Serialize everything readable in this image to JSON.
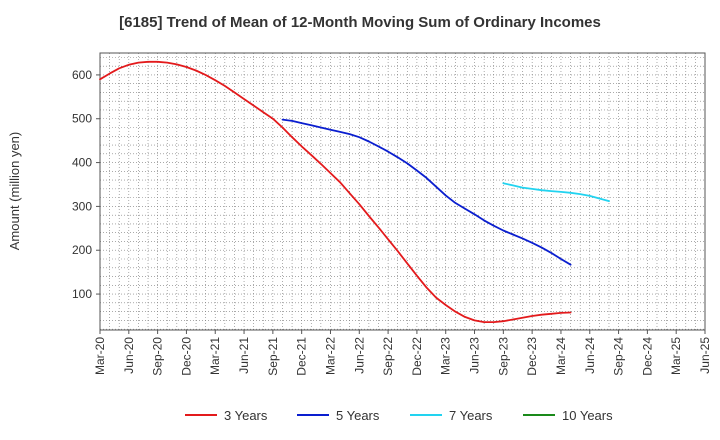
{
  "chart_data": {
    "type": "line",
    "title": "[6185]  Trend of Mean of 12-Month Moving Sum of Ordinary Incomes",
    "xlabel": "",
    "ylabel": "Amount (million yen)",
    "ylim": [
      18,
      650
    ],
    "y_ticks": [
      100,
      200,
      300,
      400,
      500,
      600
    ],
    "grid": true,
    "legend_position": "bottom",
    "x_tick_labels": [
      "Mar-20",
      "Jun-20",
      "Sep-20",
      "Dec-20",
      "Mar-21",
      "Jun-21",
      "Sep-21",
      "Dec-21",
      "Mar-22",
      "Jun-22",
      "Sep-22",
      "Dec-22",
      "Mar-23",
      "Jun-23",
      "Sep-23",
      "Dec-23",
      "Mar-24",
      "Jun-24",
      "Sep-24",
      "Dec-24",
      "Mar-25",
      "Jun-25"
    ],
    "series": [
      {
        "name": "3 Years",
        "color": "#e31a1c",
        "start_index": 0,
        "values": [
          590,
          603,
          615,
          623,
          628,
          630,
          630,
          628,
          624,
          618,
          610,
          600,
          588,
          575,
          560,
          545,
          530,
          515,
          500,
          480,
          458,
          437,
          417,
          397,
          376,
          355,
          330,
          305,
          278,
          252,
          225,
          198,
          170,
          142,
          115,
          92,
          75,
          60,
          48,
          40,
          36,
          36,
          38,
          42,
          46,
          50,
          53,
          55,
          57,
          58
        ]
      },
      {
        "name": "5 Years",
        "color": "#0a1ecf",
        "start_index": 19,
        "values": [
          498,
          495,
          490,
          485,
          480,
          475,
          470,
          465,
          458,
          448,
          437,
          425,
          412,
          398,
          382,
          365,
          345,
          325,
          308,
          295,
          282,
          268,
          256,
          245,
          236,
          227,
          217,
          206,
          194,
          180,
          167
        ]
      },
      {
        "name": "7 Years",
        "color": "#22d3f0",
        "start_index": 42,
        "values": [
          353,
          348,
          343,
          340,
          337,
          335,
          333,
          331,
          328,
          324,
          318,
          312
        ]
      },
      {
        "name": "10 Years",
        "color": "#1a8a1a",
        "start_index": 0,
        "values": []
      }
    ]
  }
}
